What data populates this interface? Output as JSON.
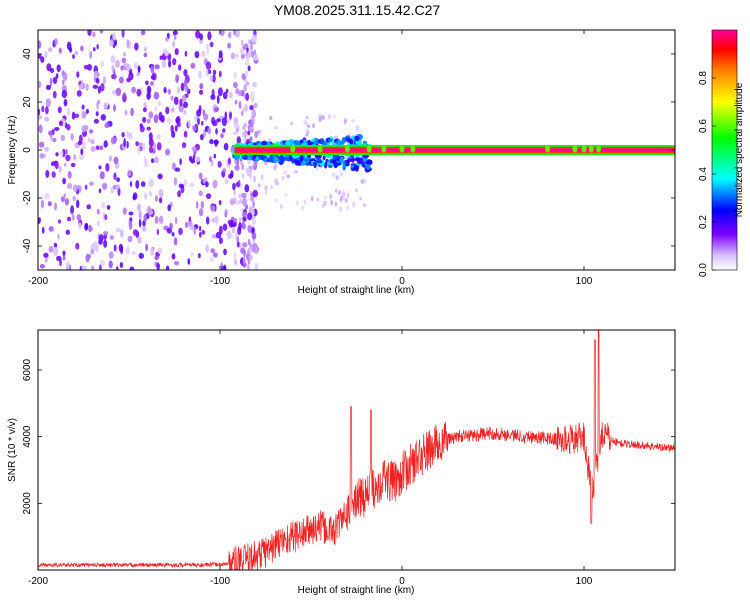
{
  "chart_data": [
    {
      "id": "spectrogram",
      "type": "heatmap",
      "title": "YM08.2025.311.15.42.C27",
      "xlabel": "Height of straight line (km)",
      "ylabel": "Frequency (Hz)",
      "xlim": [
        -200,
        150
      ],
      "ylim": [
        -50,
        50
      ],
      "xticks": [
        -200,
        -100,
        0,
        100
      ],
      "xtick_labels": [
        "-200",
        "-100",
        "0",
        "100"
      ],
      "yticks": [
        -40,
        -20,
        0,
        20,
        40
      ],
      "ytick_labels": [
        "-40",
        "-20",
        "0",
        "20",
        "40"
      ],
      "colorbar": {
        "label": "Normalized spectral amplitude",
        "range": [
          0,
          1
        ],
        "ticks": [
          0,
          0.2,
          0.4,
          0.6,
          0.8
        ],
        "tick_labels": [
          "0.0",
          "0.2",
          "0.4",
          "0.6",
          "0.8"
        ]
      },
      "regions": [
        {
          "name": "noise",
          "x_range": [
            -200,
            -80
          ],
          "y_range": [
            -50,
            50
          ],
          "amplitude": 0.1
        },
        {
          "name": "transition",
          "x_range": [
            -92,
            -18
          ],
          "y_range": [
            -12,
            6
          ],
          "amplitude": 0.3
        },
        {
          "name": "carrier",
          "x_range": [
            -92,
            150
          ],
          "center_hz": 0,
          "amplitude": 1.0
        }
      ]
    },
    {
      "id": "snr",
      "type": "line",
      "xlabel": "Height of straight line (km)",
      "ylabel": "SNR (10 * v/v)",
      "xlim": [
        -200,
        150
      ],
      "ylim": [
        0,
        7200
      ],
      "xticks": [
        -200,
        -100,
        0,
        100
      ],
      "xtick_labels": [
        "-200",
        "-100",
        "0",
        "100"
      ],
      "yticks": [
        2000,
        4000,
        6000
      ],
      "ytick_labels": [
        "2000",
        "4000",
        "6000"
      ],
      "series": [
        {
          "name": "SNR",
          "color": "#ee2222",
          "x": [
            -200,
            -150,
            -110,
            -95,
            -85,
            -75,
            -65,
            -55,
            -45,
            -38,
            -30,
            -25,
            -20,
            -15,
            -10,
            -5,
            0,
            10,
            20,
            30,
            40,
            50,
            60,
            70,
            80,
            90,
            95,
            100,
            103,
            105,
            107,
            110,
            115,
            120,
            130,
            140,
            150
          ],
          "y": [
            150,
            150,
            150,
            180,
            300,
            550,
            900,
            1100,
            1300,
            1150,
            1700,
            2100,
            2250,
            2500,
            2800,
            2600,
            2900,
            3400,
            3800,
            4000,
            4050,
            4100,
            4050,
            4000,
            3950,
            3900,
            3950,
            4000,
            2800,
            2200,
            3200,
            4100,
            3900,
            3800,
            3750,
            3700,
            3650
          ]
        }
      ],
      "spikes": [
        {
          "x": -28,
          "y": 4900
        },
        {
          "x": -17,
          "y": 4800
        },
        {
          "x": 106,
          "y": 6900
        },
        {
          "x": 108,
          "y": 7200
        },
        {
          "x": 104,
          "y": 1400
        }
      ]
    }
  ]
}
